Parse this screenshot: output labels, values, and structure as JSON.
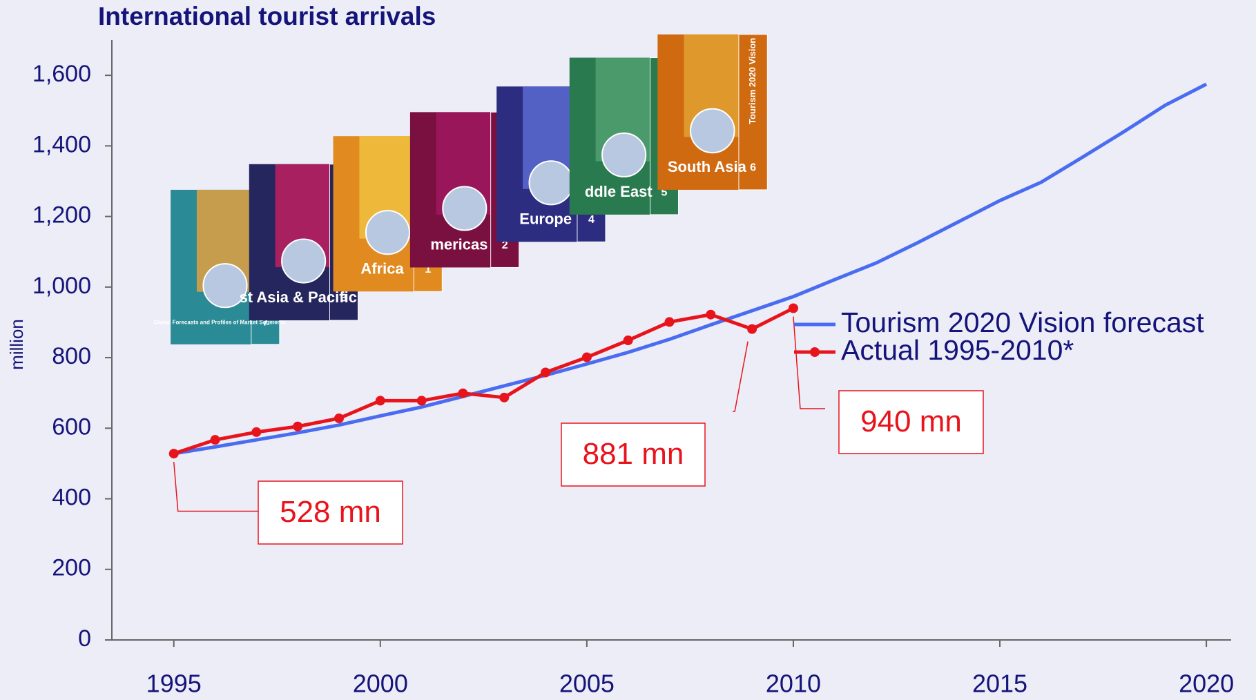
{
  "chart_data": {
    "type": "line",
    "title": "International tourist arrivals",
    "ylabel": "million",
    "x": [
      1995,
      1996,
      1997,
      1998,
      1999,
      2000,
      2001,
      2002,
      2003,
      2004,
      2005,
      2006,
      2007,
      2008,
      2009,
      2010,
      2011,
      2012,
      2013,
      2014,
      2015,
      2016,
      2017,
      2018,
      2019,
      2020
    ],
    "series": [
      {
        "name": "Tourism 2020 Vision forecast",
        "color": "#4a6cf0",
        "markers": false,
        "values": [
          528,
          547,
          567,
          587,
          609,
          635,
          660,
          690,
          720,
          750,
          782,
          815,
          852,
          893,
          933,
          973,
          1021,
          1068,
          1125,
          1185,
          1245,
          1297,
          1368,
          1440,
          1515,
          1575
        ]
      },
      {
        "name": "Actual 1995-2010*",
        "color": "#e8141c",
        "markers": true,
        "values": [
          528,
          567,
          589,
          605,
          628,
          678,
          678,
          699,
          687,
          758,
          801,
          849,
          901,
          922,
          881,
          940,
          null,
          null,
          null,
          null,
          null,
          null,
          null,
          null,
          null,
          null
        ],
        "value_labels": [
          "528 mn",
          null,
          null,
          null,
          null,
          null,
          null,
          null,
          null,
          null,
          null,
          null,
          null,
          null,
          "881 mn",
          "940 mn",
          null,
          null,
          null,
          null,
          null,
          null,
          null,
          null,
          null,
          null
        ]
      }
    ],
    "xlim": [
      1993.5,
      2020.6
    ],
    "xticks": [
      1995,
      2000,
      2005,
      2010,
      2015,
      2020
    ],
    "ylim": [
      0,
      1700
    ],
    "yticks": [
      0,
      200,
      400,
      600,
      800,
      {
        "value": 1000,
        "label": "1,000"
      },
      {
        "value": 1200,
        "label": "1,200"
      },
      {
        "value": 1400,
        "label": "1,400"
      },
      {
        "value": 1600,
        "label": "1,600"
      }
    ],
    "grid": false,
    "legend": "right"
  },
  "covers": {
    "title": "Tourism 2020 Vision",
    "items": [
      {
        "label": "Global Forecasts and Profiles of Market Segments",
        "volume": "7"
      },
      {
        "label": "st Asia & Pacific",
        "volume": "3"
      },
      {
        "label": "Africa",
        "volume": "1"
      },
      {
        "label": "mericas",
        "volume": "2"
      },
      {
        "label": "Europe",
        "volume": "4"
      },
      {
        "label": "ddle East",
        "volume": "5"
      },
      {
        "label": "South Asia",
        "volume": "6"
      }
    ]
  }
}
